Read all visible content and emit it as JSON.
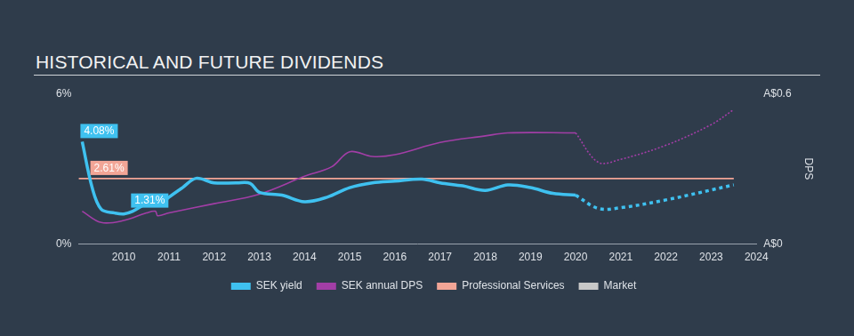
{
  "chart_data": {
    "type": "line",
    "title": "HISTORICAL AND FUTURE DIVIDENDS",
    "y2_label": "DPS",
    "xlim": [
      2009,
      2024
    ],
    "xticks": [
      2010,
      2011,
      2012,
      2013,
      2014,
      2015,
      2016,
      2017,
      2018,
      2019,
      2020,
      2021,
      2022,
      2023,
      2024
    ],
    "ylim": [
      0,
      6
    ],
    "yticks": [
      {
        "value": 0,
        "label": "0%"
      },
      {
        "value": 6,
        "label": "6%"
      }
    ],
    "y2lim": [
      0,
      0.6
    ],
    "y2ticks": [
      {
        "value": 0,
        "label": "A$0"
      },
      {
        "value": 0.6,
        "label": "A$0.6"
      }
    ],
    "grid": false,
    "legend": "bottom",
    "series": [
      {
        "name": "SEK yield",
        "color": "#3fc1f0",
        "line_style": "solid",
        "x": [
          2009.08,
          2009.3,
          2009.5,
          2009.8,
          2010.0,
          2010.2,
          2010.6,
          2010.8,
          2011.0,
          2011.3,
          2011.6,
          2012.0,
          2012.5,
          2012.8,
          2013.0,
          2013.5,
          2014.0,
          2014.5,
          2015.0,
          2015.5,
          2016.0,
          2016.6,
          2017.0,
          2017.5,
          2018.0,
          2018.5,
          2019.0,
          2019.5,
          2020.0
        ],
        "values": [
          4.08,
          2.25,
          1.39,
          1.24,
          1.2,
          1.31,
          1.69,
          1.6,
          1.87,
          2.25,
          2.62,
          2.44,
          2.44,
          2.42,
          2.06,
          1.95,
          1.69,
          1.87,
          2.25,
          2.44,
          2.51,
          2.59,
          2.44,
          2.32,
          2.14,
          2.36,
          2.25,
          2.02,
          1.95
        ]
      },
      {
        "name": "SEK yield",
        "color": "#3fc1f0",
        "line_style": "dotted",
        "x": [
          2020.0,
          2020.5,
          2021.0,
          2022.0,
          2023.5
        ],
        "values": [
          1.95,
          1.42,
          1.45,
          1.76,
          2.36
        ]
      },
      {
        "name": "SEK annual DPS",
        "color": "#a23ea6",
        "line_style": "solid",
        "axis": "y2",
        "x": [
          2009.08,
          2009.5,
          2010.0,
          2010.5,
          2010.7,
          2010.75,
          2011.0,
          2012.0,
          2013.0,
          2014.0,
          2014.6,
          2015.0,
          2015.5,
          2016.0,
          2017.0,
          2018.0,
          2018.5,
          2020.0
        ],
        "values": [
          0.131,
          0.086,
          0.094,
          0.124,
          0.131,
          0.113,
          0.124,
          0.161,
          0.199,
          0.27,
          0.308,
          0.368,
          0.349,
          0.356,
          0.405,
          0.431,
          0.443,
          0.443
        ]
      },
      {
        "name": "SEK annual DPS",
        "color": "#a23ea6",
        "line_style": "dotted",
        "axis": "y2",
        "x": [
          2020.0,
          2020.5,
          2021.0,
          2022.0,
          2023.0,
          2023.5
        ],
        "values": [
          0.443,
          0.326,
          0.338,
          0.394,
          0.476,
          0.536
        ]
      },
      {
        "name": "Professional Services",
        "color": "#f2a596",
        "line_style": "solid",
        "x": [
          2009.0,
          2023.5
        ],
        "values": [
          2.61,
          2.61
        ]
      },
      {
        "name": "Market",
        "color": "#c8c8c8",
        "line_style": "solid",
        "x": [],
        "values": []
      }
    ],
    "annotations": [
      {
        "text": "4.08%",
        "x": 2009.08,
        "y": 4.08,
        "color": "#3fc1f0"
      },
      {
        "text": "1.31%",
        "x": 2010.2,
        "y": 1.31,
        "color": "#3fc1f0"
      },
      {
        "text": "2.61%",
        "x": 2009.3,
        "y": 2.61,
        "color": "#f2a596"
      }
    ]
  }
}
